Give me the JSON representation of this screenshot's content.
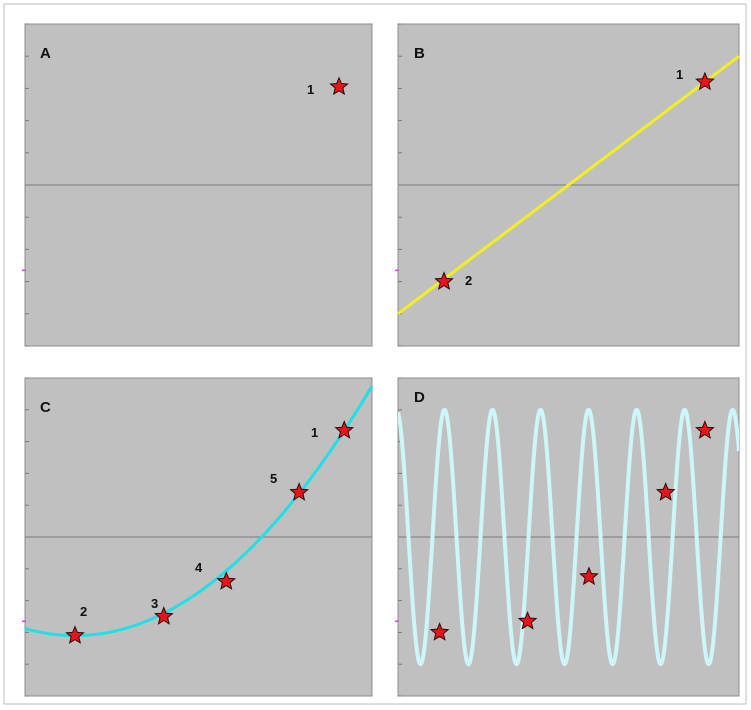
{
  "colors": {
    "panel_bg": "#c0c0c0",
    "panel_border": "#8c8c8c",
    "axis_line": "#7a7a7a",
    "star_fill": "#e8141c",
    "star_stroke": "#2a0a0a",
    "line_b": "#f2ee22",
    "curve_c": "#22dfe6",
    "wave_d": "#cdf6f8",
    "tick_marker": "#e040e0"
  },
  "chart_data": [
    {
      "type": "scatter",
      "panel": "A",
      "xlim": [
        0,
        10
      ],
      "ylim": [
        -1,
        1
      ],
      "grid": false,
      "points": [
        {
          "label": "1",
          "x": 9.05,
          "y": 0.61
        }
      ]
    },
    {
      "type": "line",
      "panel": "B",
      "xlim": [
        0,
        10
      ],
      "ylim": [
        -1,
        1
      ],
      "grid": false,
      "line": {
        "x": [
          0,
          10
        ],
        "y": [
          -0.8,
          0.8
        ]
      },
      "points": [
        {
          "label": "1",
          "x": 9.0,
          "y": 0.64
        },
        {
          "label": "2",
          "x": 1.35,
          "y": -0.6
        }
      ]
    },
    {
      "type": "line",
      "panel": "C",
      "xlim": [
        0,
        10
      ],
      "ylim": [
        -1,
        1
      ],
      "grid": false,
      "curve": {
        "x": [
          0,
          1.44,
          4.0,
          5.8,
          7.9,
          9.2,
          10.0
        ],
        "y": [
          -0.53,
          -0.62,
          -0.5,
          -0.28,
          0.28,
          0.67,
          0.99
        ]
      },
      "points": [
        {
          "label": "1",
          "x": 9.2,
          "y": 0.67
        },
        {
          "label": "2",
          "x": 1.44,
          "y": -0.62
        },
        {
          "label": "3",
          "x": 4.0,
          "y": -0.5
        },
        {
          "label": "4",
          "x": 5.8,
          "y": -0.28
        },
        {
          "label": "5",
          "x": 7.9,
          "y": 0.28
        }
      ]
    },
    {
      "type": "line",
      "panel": "D",
      "xlim": [
        0,
        10
      ],
      "ylim": [
        -1,
        1
      ],
      "grid": false,
      "wave": {
        "amplitude": 0.8,
        "cycles": 7.1,
        "phase": 0.2,
        "offset": 0.2
      },
      "points": [
        {
          "x": 1.22,
          "y": -0.6
        },
        {
          "x": 3.8,
          "y": -0.53
        },
        {
          "x": 5.6,
          "y": -0.25
        },
        {
          "x": 7.85,
          "y": 0.28
        },
        {
          "x": 9.0,
          "y": 0.67
        }
      ]
    }
  ],
  "panel_letters": {
    "a": "A",
    "b": "B",
    "c": "C",
    "d": "D"
  },
  "labels": {
    "a1": "1",
    "b1": "1",
    "b2": "2",
    "c1": "1",
    "c2": "2",
    "c3": "3",
    "c4": "4",
    "c5": "5"
  }
}
